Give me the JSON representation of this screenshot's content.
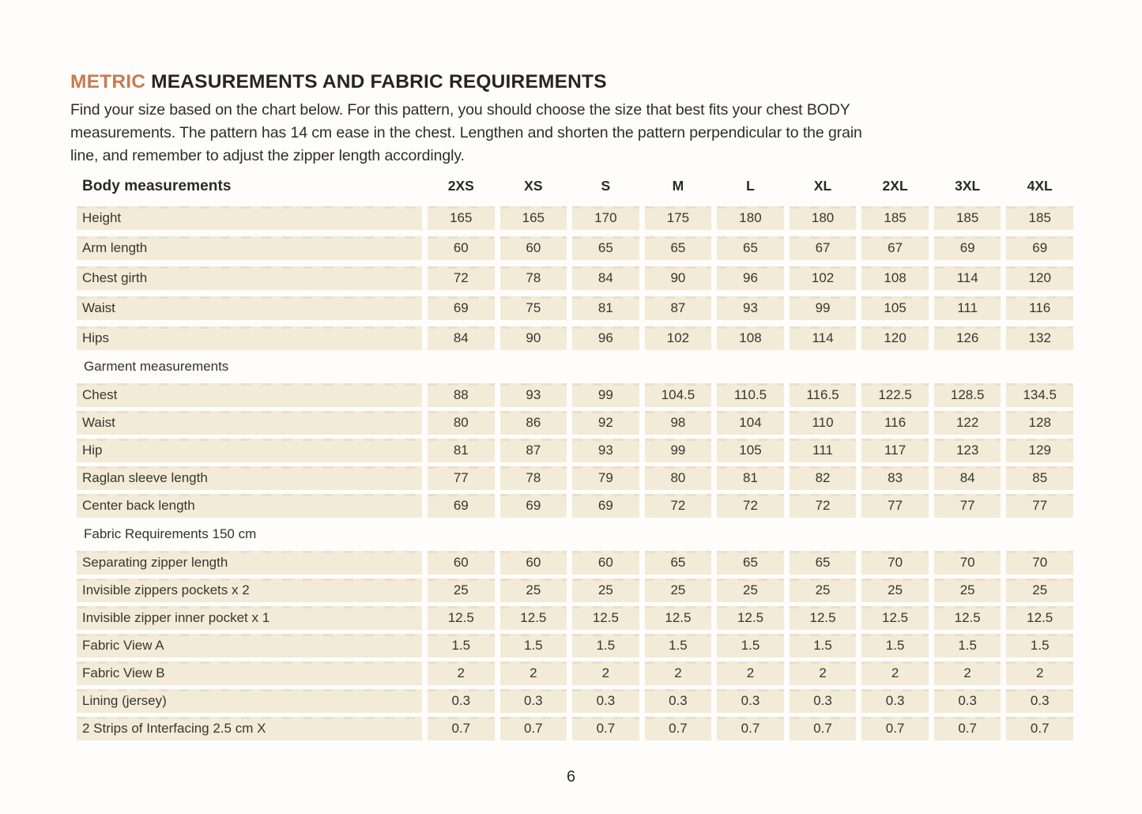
{
  "colors": {
    "accent": "#c77b52",
    "row_bg": "#f2ebd7",
    "heading_text": "#272523",
    "body_text": "#33302b"
  },
  "header": {
    "accent": "METRIC",
    "rest": "MEASUREMENTS AND FABRIC REQUIREMENTS"
  },
  "intro": {
    "lines": [
      "Find your size based on the chart below. For this pattern, you should choose the size that best fits your chest BODY",
      "measurements. The pattern has 14 cm ease in the chest. Lengthen and shorten the pattern perpendicular to the grain",
      "line, and remember to adjust the zipper length accordingly."
    ]
  },
  "table": {
    "header_label": "Body measurements",
    "sizes": [
      "2XS",
      "XS",
      "S",
      "M",
      "L",
      "XL",
      "2XL",
      "3XL",
      "4XL"
    ],
    "sections": [
      {
        "id": "body",
        "title": null,
        "rows": [
          {
            "label": "Height",
            "values": [
              "165",
              "165",
              "170",
              "175",
              "180",
              "180",
              "185",
              "185",
              "185"
            ]
          },
          {
            "label": "Arm length",
            "values": [
              "60",
              "60",
              "65",
              "65",
              "65",
              "67",
              "67",
              "69",
              "69"
            ]
          },
          {
            "label": "Chest girth",
            "values": [
              "72",
              "78",
              "84",
              "90",
              "96",
              "102",
              "108",
              "114",
              "120"
            ]
          },
          {
            "label": "Waist",
            "values": [
              "69",
              "75",
              "81",
              "87",
              "93",
              "99",
              "105",
              "111",
              "116"
            ]
          },
          {
            "label": "Hips",
            "values": [
              "84",
              "90",
              "96",
              "102",
              "108",
              "114",
              "120",
              "126",
              "132"
            ]
          }
        ]
      },
      {
        "id": "garment",
        "title": "Garment measurements",
        "rows": [
          {
            "label": "Chest",
            "values": [
              "88",
              "93",
              "99",
              "104.5",
              "110.5",
              "116.5",
              "122.5",
              "128.5",
              "134.5"
            ]
          },
          {
            "label": "Waist",
            "values": [
              "80",
              "86",
              "92",
              "98",
              "104",
              "110",
              "116",
              "122",
              "128"
            ]
          },
          {
            "label": "Hip",
            "values": [
              "81",
              "87",
              "93",
              "99",
              "105",
              "111",
              "117",
              "123",
              "129"
            ]
          },
          {
            "label": "Raglan sleeve length",
            "values": [
              "77",
              "78",
              "79",
              "80",
              "81",
              "82",
              "83",
              "84",
              "85"
            ]
          },
          {
            "label": "Center back length",
            "values": [
              "69",
              "69",
              "69",
              "72",
              "72",
              "72",
              "77",
              "77",
              "77"
            ]
          }
        ]
      },
      {
        "id": "fabric",
        "title": "Fabric Requirements 150 cm",
        "rows": [
          {
            "label": "Separating zipper length",
            "values": [
              "60",
              "60",
              "60",
              "65",
              "65",
              "65",
              "70",
              "70",
              "70"
            ]
          },
          {
            "label": "Invisible zippers pockets x 2",
            "values": [
              "25",
              "25",
              "25",
              "25",
              "25",
              "25",
              "25",
              "25",
              "25"
            ]
          },
          {
            "label": "Invisible zipper inner pocket x 1",
            "values": [
              "12.5",
              "12.5",
              "12.5",
              "12.5",
              "12.5",
              "12.5",
              "12.5",
              "12.5",
              "12.5"
            ]
          },
          {
            "label": "Fabric View A",
            "values": [
              "1.5",
              "1.5",
              "1.5",
              "1.5",
              "1.5",
              "1.5",
              "1.5",
              "1.5",
              "1.5"
            ]
          },
          {
            "label": "Fabric View B",
            "values": [
              "2",
              "2",
              "2",
              "2",
              "2",
              "2",
              "2",
              "2",
              "2"
            ]
          },
          {
            "label": "Lining (jersey)",
            "values": [
              "0.3",
              "0.3",
              "0.3",
              "0.3",
              "0.3",
              "0.3",
              "0.3",
              "0.3",
              "0.3"
            ]
          },
          {
            "label": "2 Strips of Interfacing  2.5 cm X",
            "values": [
              "0.7",
              "0.7",
              "0.7",
              "0.7",
              "0.7",
              "0.7",
              "0.7",
              "0.7",
              "0.7"
            ]
          }
        ]
      }
    ]
  },
  "footer": {
    "page_number": "6"
  }
}
